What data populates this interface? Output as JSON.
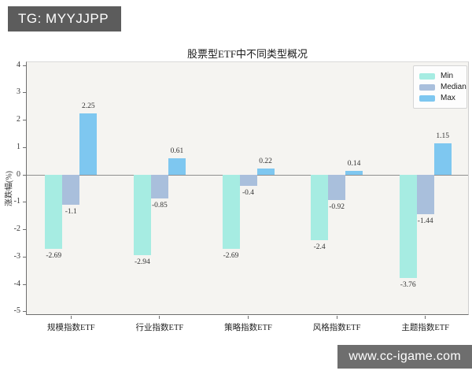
{
  "badge": {
    "text": "TG: MYYJJPP",
    "bg": "#5c5c5c",
    "fg": "#ffffff"
  },
  "watermark": {
    "text": "www.cc-igame.com",
    "bg": "#6e6e6e",
    "fg": "#ffffff"
  },
  "chart_data": {
    "type": "bar",
    "title": "股票型ETF中不同类型概况",
    "xlabel": "",
    "ylabel": "涨跌幅(%)",
    "categories": [
      "规模指数ETF",
      "行业指数ETF",
      "策略指数ETF",
      "风格指数ETF",
      "主题指数ETF"
    ],
    "series": [
      {
        "name": "Min",
        "color": "#a6ece2",
        "values": [
          -2.69,
          -2.94,
          -2.69,
          -2.4,
          -3.76
        ]
      },
      {
        "name": "Median",
        "color": "#a9bfdc",
        "values": [
          -1.1,
          -0.85,
          -0.4,
          -0.92,
          -1.44
        ]
      },
      {
        "name": "Max",
        "color": "#7ec7f0",
        "values": [
          2.25,
          0.61,
          0.22,
          0.14,
          1.15
        ]
      }
    ],
    "yticks": [
      4,
      3,
      2,
      1,
      0,
      -1,
      -2,
      -3,
      -4,
      -5
    ],
    "ylim": [
      -5.15,
      4.12
    ],
    "grid": false,
    "value_labels": true,
    "legend_position": "upper right",
    "plot_bg": "#f5f4f1",
    "zero_line_color": "#8f8f8f"
  }
}
